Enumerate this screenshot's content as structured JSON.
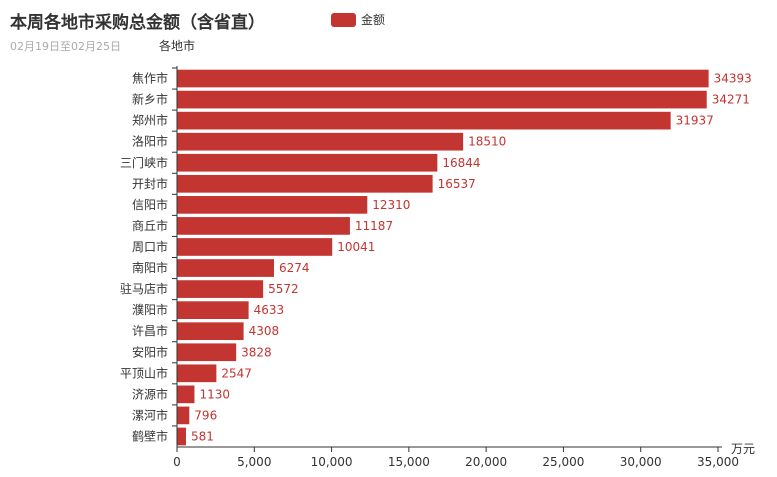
{
  "chart_data": {
    "type": "bar",
    "orientation": "horizontal",
    "title": "本周各地市采购总金额（含省直）",
    "subtitle": "02月19日至02月25日",
    "ylabel": "各地市",
    "xlabel": "万元",
    "xlim": [
      0,
      35000
    ],
    "x_ticks": [
      "0",
      "5,000",
      "10,000",
      "15,000",
      "20,000",
      "25,000",
      "30,000",
      "35,000"
    ],
    "legend": "top",
    "grid": false,
    "categories": [
      "焦作市",
      "新乡市",
      "郑州市",
      "洛阳市",
      "三门峡市",
      "开封市",
      "信阳市",
      "商丘市",
      "周口市",
      "南阳市",
      "驻马店市",
      "濮阳市",
      "许昌市",
      "安阳市",
      "平顶山市",
      "济源市",
      "漯河市",
      "鹤壁市"
    ],
    "series": [
      {
        "name": "金额",
        "color": "#c23531",
        "values": [
          34393,
          34271,
          31937,
          18510,
          16844,
          16537,
          12310,
          11187,
          10041,
          6274,
          5572,
          4633,
          4308,
          3828,
          2547,
          1130,
          796,
          581
        ]
      }
    ]
  }
}
